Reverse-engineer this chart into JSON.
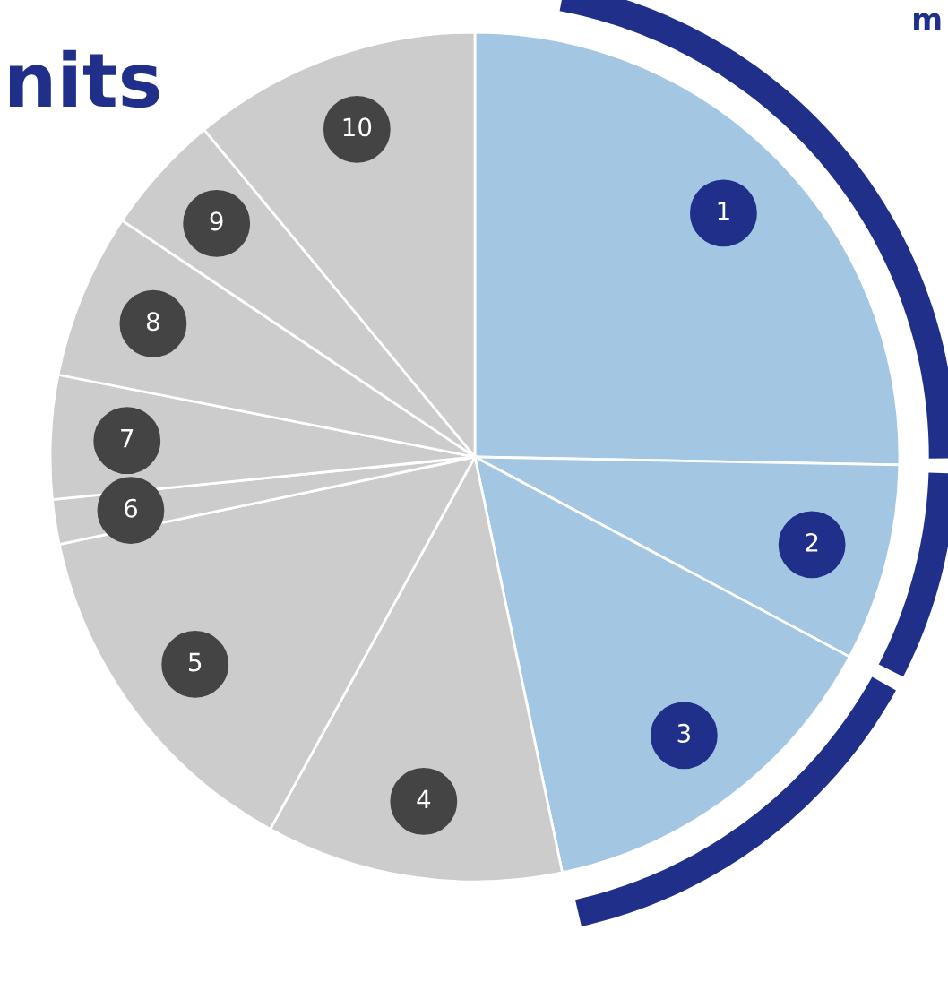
{
  "chart_data": {
    "type": "pie",
    "title": "nits",
    "annotations": [
      "m"
    ],
    "categories": [
      "1",
      "2",
      "3",
      "4",
      "5",
      "6",
      "7",
      "8",
      "9",
      "10"
    ],
    "values": [
      25.3,
      7.5,
      13.9,
      11.3,
      13.7,
      1.7,
      4.7,
      6.3,
      4.6,
      11.0
    ],
    "colors": [
      "#a3c6e2",
      "#a3c6e2",
      "#a3c6e2",
      "#cccccc",
      "#cccccc",
      "#cccccc",
      "#cccccc",
      "#cccccc",
      "#cccccc",
      "#cccccc"
    ]
  }
}
